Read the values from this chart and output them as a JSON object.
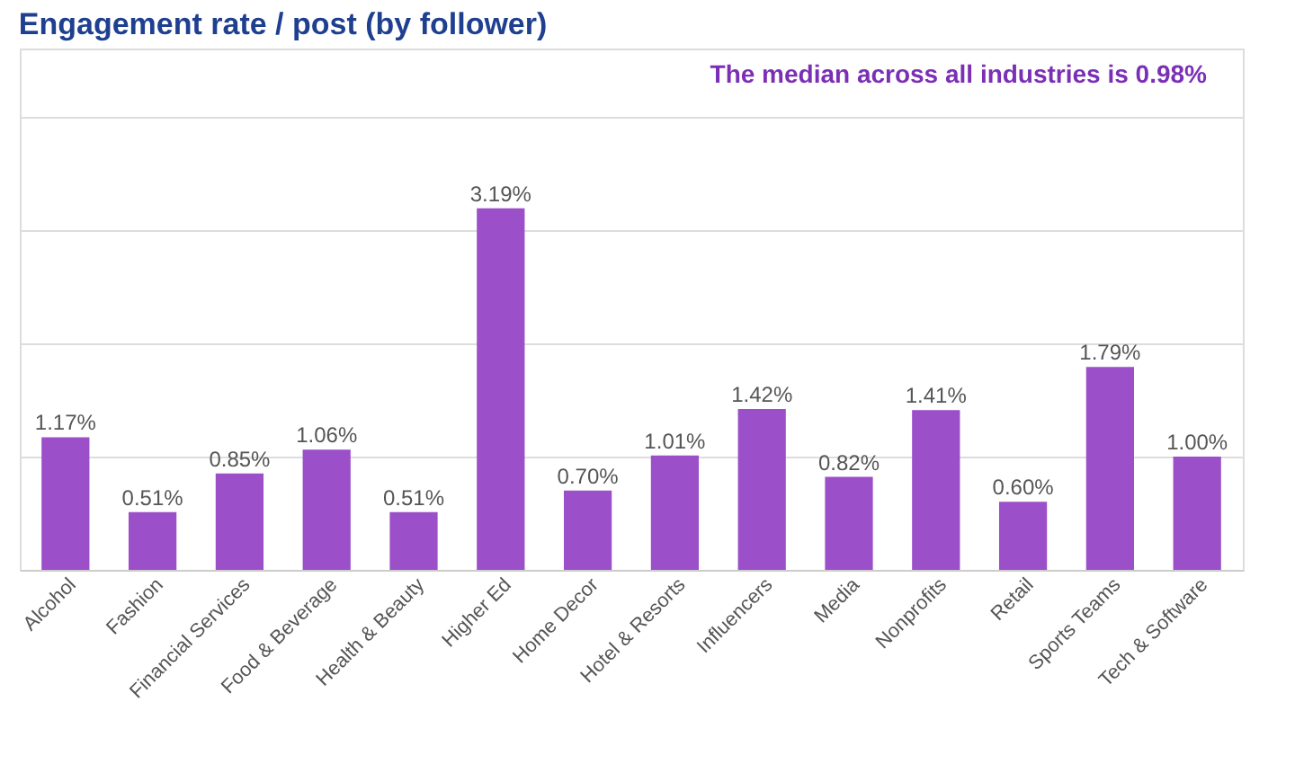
{
  "chart_data": {
    "type": "bar",
    "title": "Engagement rate / post (by follower)",
    "categories": [
      "Alcohol",
      "Fashion",
      "Financial Services",
      "Food & Beverage",
      "Health & Beauty",
      "Higher Ed",
      "Home Decor",
      "Hotel & Resorts",
      "Influencers",
      "Media",
      "Nonprofits",
      "Retail",
      "Sports Teams",
      "Tech & Software"
    ],
    "values": [
      1.17,
      0.51,
      0.85,
      1.06,
      0.51,
      3.19,
      0.7,
      1.01,
      1.42,
      0.82,
      1.41,
      0.6,
      1.79,
      1.0
    ],
    "value_labels": [
      "1.17%",
      "0.51%",
      "0.85%",
      "1.06%",
      "0.51%",
      "3.19%",
      "0.70%",
      "1.01%",
      "1.42%",
      "0.82%",
      "1.41%",
      "0.60%",
      "1.79%",
      "1.00%"
    ],
    "color": "#9b4fc9",
    "ylim": [
      0,
      4.6
    ],
    "yticks": [
      {
        "value": 1,
        "label": null
      },
      {
        "value": 2,
        "label": null
      },
      {
        "value": 3,
        "label": null
      },
      {
        "value": 4,
        "label": null
      }
    ],
    "grid": "y",
    "tick_labels": "x",
    "annotations": [
      "The median across all industries is 0.98%"
    ]
  }
}
